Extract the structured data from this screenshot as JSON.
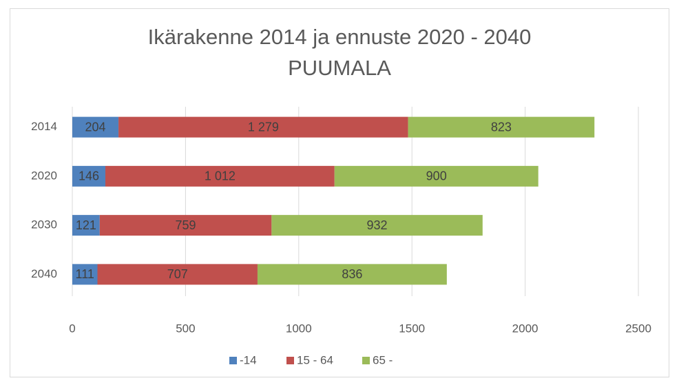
{
  "chart_data": {
    "type": "stacked_bar_horizontal",
    "title": [
      "Ikärakenne 2014 ja ennuste 2020 - 2040",
      "PUUMALA"
    ],
    "categories": [
      "2014",
      "2020",
      "2030",
      "2040"
    ],
    "series": [
      {
        "name": "-14",
        "color": "#4f81bd",
        "values": [
          204,
          146,
          121,
          111
        ]
      },
      {
        "name": "15 - 64",
        "color": "#c0504d",
        "values": [
          1279,
          1012,
          759,
          707
        ],
        "value_labels": [
          "1 279",
          "1 012",
          "759",
          "707"
        ]
      },
      {
        "name": "65 -",
        "color": "#9bbb59",
        "values": [
          823,
          900,
          932,
          836
        ]
      }
    ],
    "xlim": [
      0,
      2500
    ],
    "xticks": [
      0,
      500,
      1000,
      1500,
      2000,
      2500
    ],
    "grid": true,
    "legend": "bottom"
  }
}
